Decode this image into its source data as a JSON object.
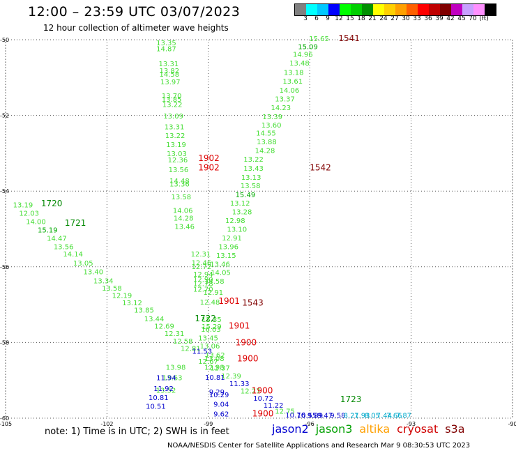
{
  "header": {
    "title": "12:00 – 23:59 UTC 03/07/2023",
    "subtitle": "12 hour collection of altimeter wave heights"
  },
  "scale": {
    "labels": [
      "3",
      "6",
      "9",
      "12",
      "15",
      "18",
      "21",
      "24",
      "27",
      "30",
      "33",
      "36",
      "39",
      "42",
      "45",
      "70",
      "(ft)"
    ],
    "colors": [
      "#808080",
      "#00ffff",
      "#00c8ff",
      "#0000ff",
      "#00ff00",
      "#00d000",
      "#009000",
      "#ffff00",
      "#ffd000",
      "#ffa000",
      "#ff6000",
      "#ff0000",
      "#c00000",
      "#800000",
      "#c000c0",
      "#c8a0ff",
      "#ff90ff",
      "#000000"
    ]
  },
  "note": "note:  1) Time is in UTC; 2) SWH is in feet",
  "legend": [
    {
      "label": "jason2",
      "color": "#0000d0"
    },
    {
      "label": "jason3",
      "color": "#00a000"
    },
    {
      "label": "altika",
      "color": "#ffa000"
    },
    {
      "label": "cryosat",
      "color": "#d00000"
    },
    {
      "label": "s3a",
      "color": "#800000"
    }
  ],
  "footer": "NOAA/NESDIS Center for Satellite Applications and Research    Mar  9 08:30:53 UTC 2023",
  "chart_data": {
    "type": "scatter",
    "xlim": [
      -105,
      -90
    ],
    "ylim": [
      -60,
      -50
    ],
    "x_ticks": [
      -105,
      -102,
      -99,
      -96,
      -93,
      -90
    ],
    "y_ticks": [
      -50,
      -52,
      -54,
      -56,
      -58,
      -60
    ],
    "x_tick_labels": [
      "-105",
      "-102",
      "-99",
      "-96",
      "-93",
      "-90"
    ],
    "y_tick_labels": [
      "-50",
      "-52",
      "-54",
      "-56",
      "-58",
      "-60"
    ],
    "grid": true,
    "palette": {
      "lg": "#44dd33",
      "g": "#00aa00",
      "dg": "#008800",
      "b": "#0000cc",
      "c": "#00aacc",
      "r": "#dd0000",
      "m": "#800000"
    },
    "points": [
      {
        "x": -100.54,
        "y": -50.15,
        "label": "13.35",
        "c": "lg"
      },
      {
        "x": -100.54,
        "y": -50.3,
        "label": "14.87",
        "c": "lg"
      },
      {
        "x": -100.47,
        "y": -50.7,
        "label": "13.31",
        "c": "lg"
      },
      {
        "x": -100.45,
        "y": -50.88,
        "label": "13.82",
        "c": "lg"
      },
      {
        "x": -100.45,
        "y": -50.98,
        "label": "14.58",
        "c": "lg"
      },
      {
        "x": -100.42,
        "y": -51.18,
        "label": "13.97",
        "c": "lg"
      },
      {
        "x": -100.38,
        "y": -51.55,
        "label": "13.70",
        "c": "lg"
      },
      {
        "x": -100.38,
        "y": -51.64,
        "label": "13.85",
        "c": "lg"
      },
      {
        "x": -100.36,
        "y": -51.78,
        "label": "13.22",
        "c": "lg"
      },
      {
        "x": -100.33,
        "y": -52.08,
        "label": "13.09",
        "c": "lg"
      },
      {
        "x": -100.3,
        "y": -52.37,
        "label": "13.31",
        "c": "lg"
      },
      {
        "x": -100.28,
        "y": -52.6,
        "label": "13.22",
        "c": "lg"
      },
      {
        "x": -100.25,
        "y": -52.84,
        "label": "13.19",
        "c": "lg"
      },
      {
        "x": -100.23,
        "y": -53.08,
        "label": "13.03",
        "c": "lg"
      },
      {
        "x": -100.2,
        "y": -53.24,
        "label": "12.36",
        "c": "lg"
      },
      {
        "x": -100.18,
        "y": -53.5,
        "label": "13.56",
        "c": "lg"
      },
      {
        "x": -100.15,
        "y": -53.79,
        "label": "14.48",
        "c": "lg"
      },
      {
        "x": -100.15,
        "y": -53.88,
        "label": "13.36",
        "c": "lg"
      },
      {
        "x": -100.1,
        "y": -54.22,
        "label": "13.58",
        "c": "lg"
      },
      {
        "x": -100.05,
        "y": -54.58,
        "label": "14.06",
        "c": "lg"
      },
      {
        "x": -100.03,
        "y": -54.78,
        "label": "14.28",
        "c": "lg"
      },
      {
        "x": -100.0,
        "y": -55.0,
        "label": "13.46",
        "c": "lg"
      },
      {
        "x": -99.52,
        "y": -55.73,
        "label": "12.31",
        "c": "lg"
      },
      {
        "x": -99.5,
        "y": -55.96,
        "label": "12.46",
        "c": "lg"
      },
      {
        "x": -99.5,
        "y": -56.06,
        "label": "12.72",
        "c": "lg"
      },
      {
        "x": -99.45,
        "y": -56.26,
        "label": "12.94",
        "c": "lg"
      },
      {
        "x": -99.45,
        "y": -56.4,
        "label": "12.90",
        "c": "lg"
      },
      {
        "x": -99.45,
        "y": -56.51,
        "label": "12.78",
        "c": "lg"
      },
      {
        "x": -99.45,
        "y": -56.66,
        "label": "12.70",
        "c": "lg"
      },
      {
        "x": -99.25,
        "y": -57.0,
        "label": "12.48",
        "c": "lg"
      },
      {
        "x": -99.2,
        "y": -57.46,
        "label": "15.35",
        "c": "lg"
      },
      {
        "x": -99.2,
        "y": -57.64,
        "label": "15.29",
        "c": "lg"
      },
      {
        "x": -99.22,
        "y": -57.72,
        "label": "16.03",
        "c": "lg"
      },
      {
        "x": -99.3,
        "y": -57.95,
        "label": "13.45",
        "c": "lg"
      },
      {
        "x": -99.25,
        "y": -58.16,
        "label": "13.06",
        "c": "lg"
      },
      {
        "x": -99.1,
        "y": -58.4,
        "label": "13.62",
        "c": "lg"
      },
      {
        "x": -99.12,
        "y": -58.49,
        "label": "13.08",
        "c": "lg"
      },
      {
        "x": -99.12,
        "y": -58.72,
        "label": "12.98",
        "c": "lg"
      },
      {
        "x": -100.26,
        "y": -58.72,
        "label": "13.98",
        "c": "lg"
      },
      {
        "x": -100.36,
        "y": -59.0,
        "label": "13.63",
        "c": "lg"
      },
      {
        "x": -100.55,
        "y": -59.33,
        "label": "13.52",
        "c": "lg"
      },
      {
        "x": -96.02,
        "y": -50.04,
        "label": "15.65",
        "c": "lg"
      },
      {
        "x": -96.35,
        "y": -50.25,
        "label": "15.09",
        "c": "g"
      },
      {
        "x": -96.5,
        "y": -50.45,
        "label": "14.96",
        "c": "lg"
      },
      {
        "x": -96.6,
        "y": -50.68,
        "label": "13.48",
        "c": "lg"
      },
      {
        "x": -96.77,
        "y": -50.93,
        "label": "13.18",
        "c": "lg"
      },
      {
        "x": -96.8,
        "y": -51.16,
        "label": "13.61",
        "c": "lg"
      },
      {
        "x": -96.9,
        "y": -51.4,
        "label": "14.06",
        "c": "lg"
      },
      {
        "x": -97.03,
        "y": -51.63,
        "label": "13.37",
        "c": "lg"
      },
      {
        "x": -97.15,
        "y": -51.86,
        "label": "14.23",
        "c": "lg"
      },
      {
        "x": -97.4,
        "y": -52.1,
        "label": "13.39",
        "c": "lg"
      },
      {
        "x": -97.43,
        "y": -52.32,
        "label": "13.60",
        "c": "lg"
      },
      {
        "x": -97.59,
        "y": -52.53,
        "label": "14.55",
        "c": "lg"
      },
      {
        "x": -97.57,
        "y": -52.76,
        "label": "13.88",
        "c": "lg"
      },
      {
        "x": -97.62,
        "y": -52.99,
        "label": "14.28",
        "c": "lg"
      },
      {
        "x": -97.96,
        "y": -53.22,
        "label": "13.22",
        "c": "lg"
      },
      {
        "x": -97.96,
        "y": -53.46,
        "label": "13.43",
        "c": "lg"
      },
      {
        "x": -98.03,
        "y": -53.7,
        "label": "13.13",
        "c": "lg"
      },
      {
        "x": -98.05,
        "y": -53.92,
        "label": "13.58",
        "c": "lg"
      },
      {
        "x": -98.2,
        "y": -54.16,
        "label": "15.49",
        "c": "g"
      },
      {
        "x": -98.36,
        "y": -54.38,
        "label": "13.12",
        "c": "lg"
      },
      {
        "x": -98.3,
        "y": -54.61,
        "label": "13.28",
        "c": "lg"
      },
      {
        "x": -98.5,
        "y": -54.84,
        "label": "12.98",
        "c": "lg"
      },
      {
        "x": -98.45,
        "y": -55.07,
        "label": "13.10",
        "c": "lg"
      },
      {
        "x": -98.6,
        "y": -55.3,
        "label": "12.91",
        "c": "lg"
      },
      {
        "x": -98.7,
        "y": -55.53,
        "label": "13.96",
        "c": "lg"
      },
      {
        "x": -98.77,
        "y": -55.76,
        "label": "13.15",
        "c": "lg"
      },
      {
        "x": -98.95,
        "y": -55.99,
        "label": "13.46",
        "c": "lg"
      },
      {
        "x": -98.93,
        "y": -56.22,
        "label": "14.05",
        "c": "lg"
      },
      {
        "x": -99.12,
        "y": -56.45,
        "label": "14.58",
        "c": "lg"
      },
      {
        "x": -99.15,
        "y": -56.74,
        "label": "12.91",
        "c": "lg"
      },
      {
        "x": -104.78,
        "y": -54.43,
        "label": "13.19",
        "c": "lg"
      },
      {
        "x": -104.6,
        "y": -54.65,
        "label": "12.03",
        "c": "lg"
      },
      {
        "x": -104.4,
        "y": -54.87,
        "label": "14.00",
        "c": "lg"
      },
      {
        "x": -104.05,
        "y": -55.09,
        "label": "15.19",
        "c": "g"
      },
      {
        "x": -103.78,
        "y": -55.31,
        "label": "14.47",
        "c": "lg"
      },
      {
        "x": -103.58,
        "y": -55.53,
        "label": "13.56",
        "c": "lg"
      },
      {
        "x": -103.3,
        "y": -55.73,
        "label": "14.14",
        "c": "lg"
      },
      {
        "x": -103.0,
        "y": -55.97,
        "label": "13.05",
        "c": "lg"
      },
      {
        "x": -102.7,
        "y": -56.2,
        "label": "13.40",
        "c": "lg"
      },
      {
        "x": -102.4,
        "y": -56.44,
        "label": "13.34",
        "c": "lg"
      },
      {
        "x": -102.15,
        "y": -56.63,
        "label": "13.58",
        "c": "lg"
      },
      {
        "x": -101.85,
        "y": -56.82,
        "label": "12.19",
        "c": "lg"
      },
      {
        "x": -101.55,
        "y": -57.02,
        "label": "13.12",
        "c": "lg"
      },
      {
        "x": -101.2,
        "y": -57.21,
        "label": "13.85",
        "c": "lg"
      },
      {
        "x": -100.9,
        "y": -57.44,
        "label": "13.44",
        "c": "lg"
      },
      {
        "x": -100.6,
        "y": -57.63,
        "label": "12.69",
        "c": "lg"
      },
      {
        "x": -100.3,
        "y": -57.83,
        "label": "12.31",
        "c": "lg"
      },
      {
        "x": -100.05,
        "y": -58.03,
        "label": "12.58",
        "c": "lg"
      },
      {
        "x": -99.82,
        "y": -58.22,
        "label": "12.81",
        "c": "lg"
      },
      {
        "x": -99.48,
        "y": -58.3,
        "label": "11.53",
        "c": "b"
      },
      {
        "x": -99.3,
        "y": -58.56,
        "label": "12.67",
        "c": "lg"
      },
      {
        "x": -98.95,
        "y": -58.74,
        "label": "12.37",
        "c": "lg"
      },
      {
        "x": -98.62,
        "y": -58.95,
        "label": "12.39",
        "c": "lg"
      },
      {
        "x": -98.38,
        "y": -59.15,
        "label": "11.33",
        "c": "b"
      },
      {
        "x": -98.05,
        "y": -59.35,
        "label": "12.27",
        "c": "lg"
      },
      {
        "x": -97.67,
        "y": -59.54,
        "label": "10.72",
        "c": "b"
      },
      {
        "x": -97.37,
        "y": -59.72,
        "label": "11.22",
        "c": "b"
      },
      {
        "x": -97.03,
        "y": -59.88,
        "label": "12.75",
        "c": "lg"
      },
      {
        "x": -96.72,
        "y": -59.98,
        "label": "10.76",
        "c": "b"
      },
      {
        "x": -96.38,
        "y": -59.99,
        "label": "10.55",
        "c": "b"
      },
      {
        "x": -96.07,
        "y": -59.99,
        "label": "9.89",
        "c": "b"
      },
      {
        "x": -95.78,
        "y": -59.99,
        "label": "9.47",
        "c": "b"
      },
      {
        "x": -95.4,
        "y": -59.99,
        "label": "9.58",
        "c": "b"
      },
      {
        "x": -95.0,
        "y": -59.99,
        "label": "8.21",
        "c": "c"
      },
      {
        "x": -94.68,
        "y": -59.99,
        "label": "7.93",
        "c": "c"
      },
      {
        "x": -94.38,
        "y": -59.99,
        "label": "8.05",
        "c": "c"
      },
      {
        "x": -94.03,
        "y": -59.99,
        "label": "7.44",
        "c": "c"
      },
      {
        "x": -93.73,
        "y": -59.99,
        "label": "7.66",
        "c": "c"
      },
      {
        "x": -93.45,
        "y": -59.99,
        "label": "7.87",
        "c": "c"
      },
      {
        "x": -100.54,
        "y": -59.0,
        "label": "11.94",
        "c": "b"
      },
      {
        "x": -100.62,
        "y": -59.28,
        "label": "11.92",
        "c": "b"
      },
      {
        "x": -100.77,
        "y": -59.52,
        "label": "10.81",
        "c": "b"
      },
      {
        "x": -100.85,
        "y": -59.75,
        "label": "10.51",
        "c": "b"
      },
      {
        "x": -99.1,
        "y": -58.99,
        "label": "10.81",
        "c": "b"
      },
      {
        "x": -98.98,
        "y": -59.37,
        "label": "9.29",
        "c": "b"
      },
      {
        "x": -98.98,
        "y": -59.45,
        "label": "10.29",
        "c": "b"
      },
      {
        "x": -98.85,
        "y": -59.7,
        "label": "9.04",
        "c": "b"
      },
      {
        "x": -98.85,
        "y": -59.95,
        "label": "9.62",
        "c": "b"
      }
    ],
    "annotations": [
      {
        "x": -95.15,
        "y": -50.04,
        "label": "1541",
        "c": "m"
      },
      {
        "x": -103.95,
        "y": -54.4,
        "label": "1720",
        "c": "dg"
      },
      {
        "x": -103.25,
        "y": -54.92,
        "label": "1721",
        "c": "dg"
      },
      {
        "x": -99.3,
        "y": -53.2,
        "label": "1902",
        "c": "r"
      },
      {
        "x": -99.3,
        "y": -53.45,
        "label": "1902",
        "c": "r"
      },
      {
        "x": -96.0,
        "y": -53.45,
        "label": "1542",
        "c": "m"
      },
      {
        "x": -98.7,
        "y": -56.98,
        "label": "1901",
        "c": "r"
      },
      {
        "x": -98.0,
        "y": -57.03,
        "label": "1543",
        "c": "m"
      },
      {
        "x": -99.4,
        "y": -57.44,
        "label": "1722",
        "c": "dg"
      },
      {
        "x": -98.4,
        "y": -57.63,
        "label": "1901",
        "c": "r"
      },
      {
        "x": -98.2,
        "y": -58.08,
        "label": "1900",
        "c": "r"
      },
      {
        "x": -98.15,
        "y": -58.5,
        "label": "1900",
        "c": "r"
      },
      {
        "x": -95.1,
        "y": -59.58,
        "label": "1723",
        "c": "dg"
      },
      {
        "x": -97.72,
        "y": -59.35,
        "label": "1900",
        "c": "r"
      },
      {
        "x": -97.7,
        "y": -59.95,
        "label": "1900",
        "c": "r"
      }
    ]
  }
}
